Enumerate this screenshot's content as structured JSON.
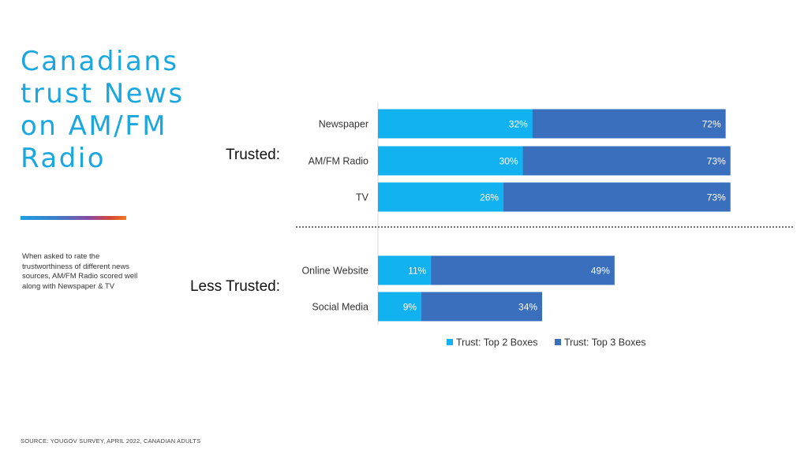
{
  "slide": {
    "title_lines": [
      "Canadians",
      "trust News",
      "on AM/FM",
      "Radio"
    ],
    "description": "When asked to rate the trustworthiness of different news sources, AM/FM Radio scored well along  with Newspaper & TV",
    "source": "SOURCE: YOUGOV SURVEY, APRIL 2022, CANADIAN ADULTS",
    "accent_color": "#1AA7E0"
  },
  "chart_data": {
    "type": "bar",
    "orientation": "horizontal",
    "stacked": true,
    "categories": [
      "Newspaper",
      "AM/FM Radio",
      "TV",
      "Online Website",
      "Social Media"
    ],
    "groups": [
      {
        "label": "Trusted:",
        "categories": [
          "Newspaper",
          "AM/FM Radio",
          "TV"
        ]
      },
      {
        "label": "Less Trusted:",
        "categories": [
          "Online Website",
          "Social Media"
        ]
      }
    ],
    "series": [
      {
        "name": "Trust: Top 2 Boxes",
        "color": "#12B2F0",
        "values": [
          32,
          30,
          26,
          11,
          9
        ]
      },
      {
        "name": "Trust: Top 3 Boxes",
        "color": "#3A6FBE",
        "values": [
          72,
          73,
          73,
          49,
          34
        ]
      }
    ],
    "value_suffix": "%",
    "xlim": [
      0,
      100
    ],
    "grid": false,
    "legend": "bottom"
  }
}
